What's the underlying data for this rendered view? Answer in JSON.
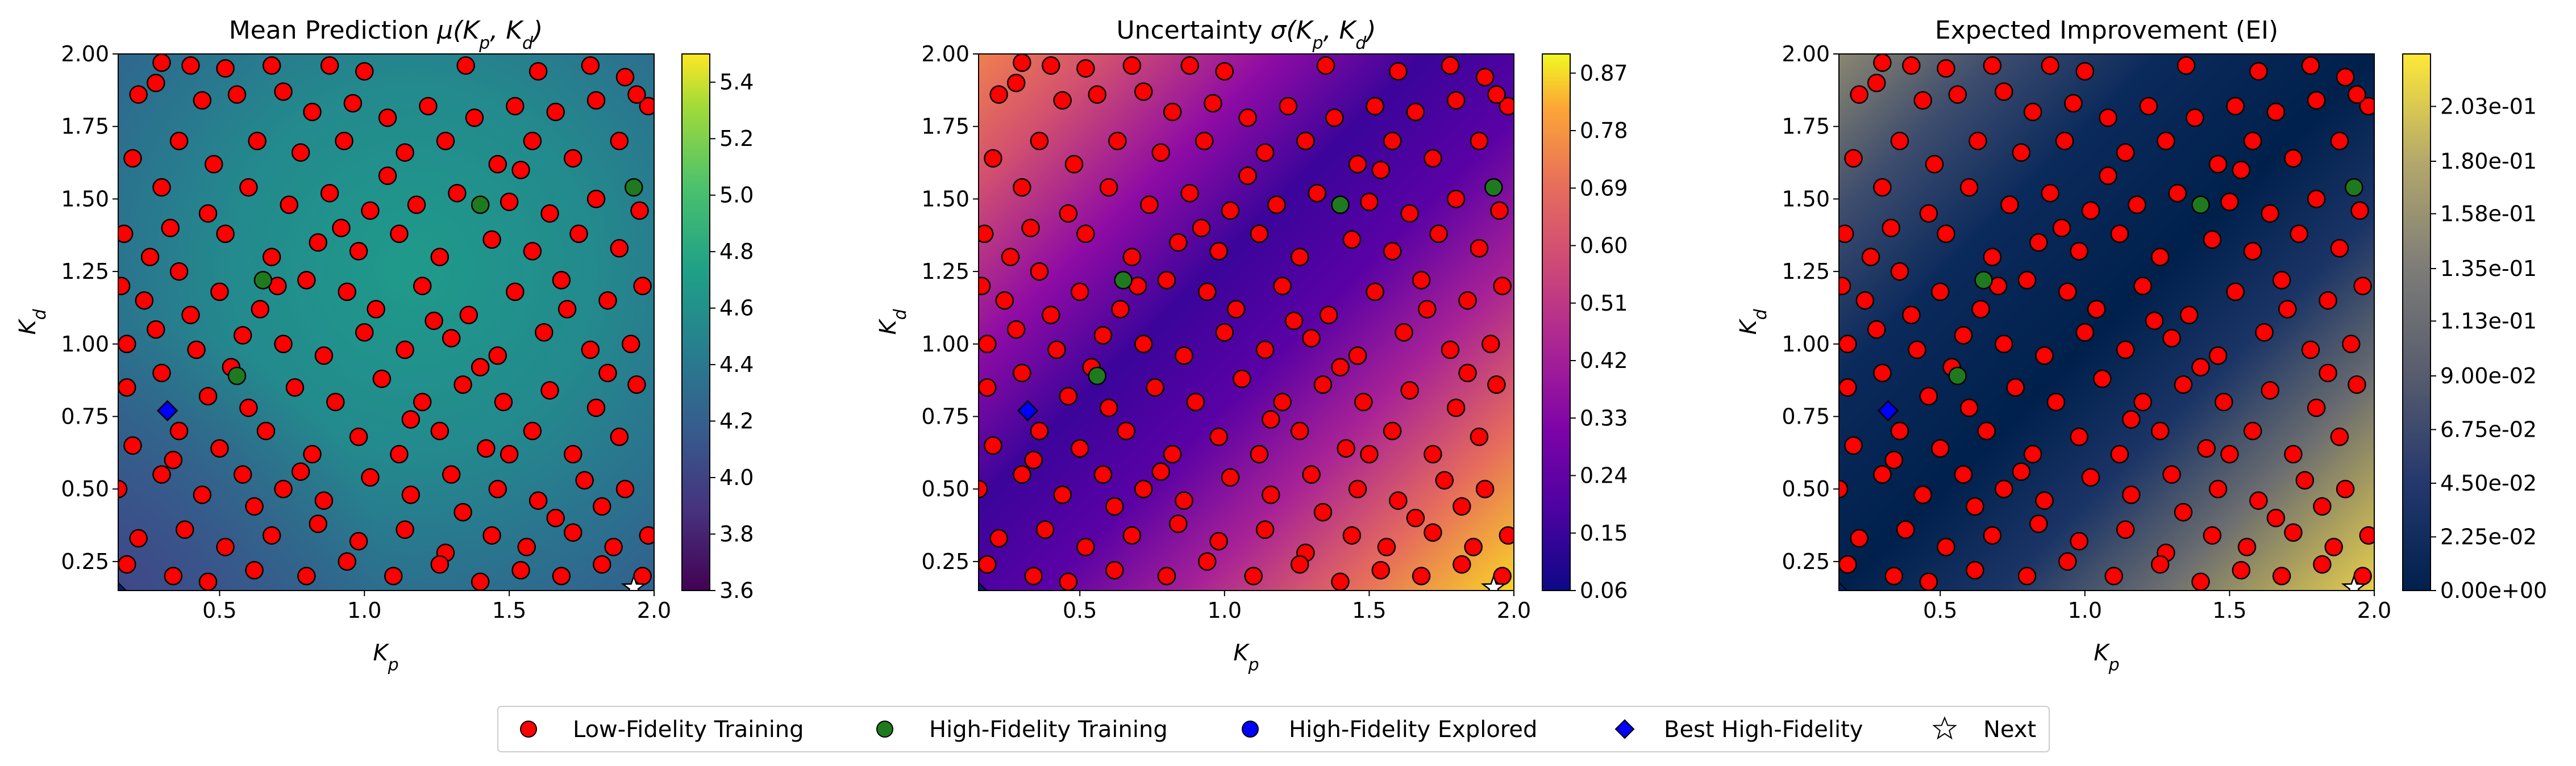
{
  "chart_data": [
    {
      "type": "heatmap",
      "title": "Mean Prediction μ(Kp, Kd)",
      "title_main": "Mean Prediction ",
      "title_math": "μ(K",
      "xlabel": "K",
      "xlabel_sub": "p",
      "ylabel": "K",
      "ylabel_sub": "d",
      "xlim": [
        0.15,
        2.0
      ],
      "ylim": [
        0.15,
        2.0
      ],
      "xticks": [
        "0.5",
        "1.0",
        "1.5",
        "2.0"
      ],
      "yticks": [
        "0.25",
        "0.50",
        "0.75",
        "1.00",
        "1.25",
        "1.50",
        "1.75",
        "2.00"
      ],
      "colormap": "viridis",
      "colorbar_range": [
        3.6,
        5.5
      ],
      "colorbar_ticks": [
        "3.6",
        "3.8",
        "4.0",
        "4.2",
        "4.4",
        "4.6",
        "4.8",
        "5.0",
        "5.2",
        "5.4"
      ]
    },
    {
      "type": "heatmap",
      "title": "Uncertainty σ(Kp, Kd)",
      "title_main": "Uncertainty ",
      "title_math": "σ(K",
      "xlabel": "K",
      "xlabel_sub": "p",
      "ylabel": "K",
      "ylabel_sub": "d",
      "xlim": [
        0.15,
        2.0
      ],
      "ylim": [
        0.15,
        2.0
      ],
      "xticks": [
        "0.5",
        "1.0",
        "1.5",
        "2.0"
      ],
      "yticks": [
        "0.25",
        "0.50",
        "0.75",
        "1.00",
        "1.25",
        "1.50",
        "1.75",
        "2.00"
      ],
      "colormap": "plasma",
      "colorbar_range": [
        0.06,
        0.9
      ],
      "colorbar_ticks": [
        "0.06",
        "0.15",
        "0.24",
        "0.33",
        "0.42",
        "0.51",
        "0.60",
        "0.69",
        "0.78",
        "0.87"
      ]
    },
    {
      "type": "heatmap",
      "title": "Expected Improvement (EI)",
      "xlabel": "K",
      "xlabel_sub": "p",
      "ylabel": "K",
      "ylabel_sub": "d",
      "xlim": [
        0.15,
        2.0
      ],
      "ylim": [
        0.15,
        2.0
      ],
      "xticks": [
        "0.5",
        "1.0",
        "1.5",
        "2.0"
      ],
      "yticks": [
        "0.25",
        "0.50",
        "0.75",
        "1.00",
        "1.25",
        "1.50",
        "1.75",
        "2.00"
      ],
      "colormap": "cividis",
      "colorbar_range": [
        0.0,
        0.225
      ],
      "colorbar_ticks": [
        "0.00e+00",
        "2.25e-02",
        "4.50e-02",
        "6.75e-02",
        "9.00e-02",
        "1.13e-01",
        "1.35e-01",
        "1.58e-01",
        "1.80e-01",
        "2.03e-01"
      ]
    }
  ],
  "points": {
    "low_fidelity": [
      [
        0.3,
        1.97
      ],
      [
        0.4,
        1.96
      ],
      [
        0.52,
        1.95
      ],
      [
        0.68,
        1.96
      ],
      [
        0.88,
        1.96
      ],
      [
        1.0,
        1.94
      ],
      [
        1.35,
        1.96
      ],
      [
        1.6,
        1.94
      ],
      [
        1.78,
        1.96
      ],
      [
        1.9,
        1.92
      ],
      [
        1.98,
        1.82
      ],
      [
        0.22,
        1.86
      ],
      [
        0.28,
        1.9
      ],
      [
        0.44,
        1.84
      ],
      [
        0.56,
        1.86
      ],
      [
        0.72,
        1.87
      ],
      [
        0.82,
        1.8
      ],
      [
        0.96,
        1.83
      ],
      [
        1.08,
        1.78
      ],
      [
        1.22,
        1.82
      ],
      [
        1.38,
        1.78
      ],
      [
        1.52,
        1.82
      ],
      [
        1.66,
        1.8
      ],
      [
        1.8,
        1.84
      ],
      [
        1.94,
        1.86
      ],
      [
        0.2,
        1.64
      ],
      [
        0.36,
        1.7
      ],
      [
        0.48,
        1.62
      ],
      [
        0.63,
        1.7
      ],
      [
        0.78,
        1.66
      ],
      [
        0.93,
        1.7
      ],
      [
        1.14,
        1.66
      ],
      [
        1.28,
        1.7
      ],
      [
        1.46,
        1.62
      ],
      [
        1.58,
        1.7
      ],
      [
        1.72,
        1.64
      ],
      [
        1.88,
        1.7
      ],
      [
        0.3,
        1.54
      ],
      [
        0.46,
        1.45
      ],
      [
        0.6,
        1.54
      ],
      [
        0.74,
        1.48
      ],
      [
        0.88,
        1.52
      ],
      [
        1.02,
        1.46
      ],
      [
        1.18,
        1.48
      ],
      [
        1.32,
        1.52
      ],
      [
        1.5,
        1.49
      ],
      [
        1.64,
        1.45
      ],
      [
        1.8,
        1.5
      ],
      [
        1.95,
        1.46
      ],
      [
        0.17,
        1.38
      ],
      [
        0.33,
        1.4
      ],
      [
        0.52,
        1.38
      ],
      [
        0.68,
        1.3
      ],
      [
        0.84,
        1.35
      ],
      [
        0.98,
        1.32
      ],
      [
        1.12,
        1.38
      ],
      [
        1.26,
        1.3
      ],
      [
        1.44,
        1.36
      ],
      [
        1.58,
        1.32
      ],
      [
        1.74,
        1.38
      ],
      [
        1.88,
        1.33
      ],
      [
        0.16,
        1.2
      ],
      [
        0.24,
        1.15
      ],
      [
        0.36,
        1.25
      ],
      [
        0.5,
        1.18
      ],
      [
        0.64,
        1.12
      ],
      [
        0.8,
        1.22
      ],
      [
        0.94,
        1.18
      ],
      [
        1.04,
        1.12
      ],
      [
        1.2,
        1.2
      ],
      [
        1.36,
        1.1
      ],
      [
        1.52,
        1.18
      ],
      [
        1.68,
        1.22
      ],
      [
        1.84,
        1.15
      ],
      [
        1.96,
        1.2
      ],
      [
        0.18,
        1.0
      ],
      [
        0.28,
        1.05
      ],
      [
        0.42,
        0.98
      ],
      [
        0.58,
        1.03
      ],
      [
        0.72,
        1.0
      ],
      [
        0.86,
        0.96
      ],
      [
        1.0,
        1.04
      ],
      [
        1.14,
        0.98
      ],
      [
        1.3,
        1.02
      ],
      [
        1.46,
        0.96
      ],
      [
        1.62,
        1.04
      ],
      [
        1.78,
        0.98
      ],
      [
        1.92,
        1.0
      ],
      [
        0.18,
        0.85
      ],
      [
        0.3,
        0.9
      ],
      [
        0.46,
        0.82
      ],
      [
        0.6,
        0.78
      ],
      [
        0.76,
        0.85
      ],
      [
        0.9,
        0.8
      ],
      [
        1.06,
        0.88
      ],
      [
        1.2,
        0.8
      ],
      [
        1.34,
        0.86
      ],
      [
        1.48,
        0.8
      ],
      [
        1.64,
        0.84
      ],
      [
        1.8,
        0.78
      ],
      [
        1.94,
        0.86
      ],
      [
        0.2,
        0.65
      ],
      [
        0.36,
        0.7
      ],
      [
        0.5,
        0.64
      ],
      [
        0.66,
        0.7
      ],
      [
        0.82,
        0.62
      ],
      [
        0.98,
        0.68
      ],
      [
        1.12,
        0.62
      ],
      [
        1.26,
        0.7
      ],
      [
        1.42,
        0.64
      ],
      [
        1.58,
        0.7
      ],
      [
        1.72,
        0.62
      ],
      [
        1.88,
        0.68
      ],
      [
        0.15,
        0.5
      ],
      [
        0.3,
        0.55
      ],
      [
        0.44,
        0.48
      ],
      [
        0.58,
        0.55
      ],
      [
        0.72,
        0.5
      ],
      [
        0.86,
        0.46
      ],
      [
        1.02,
        0.54
      ],
      [
        1.16,
        0.48
      ],
      [
        1.3,
        0.55
      ],
      [
        1.46,
        0.5
      ],
      [
        1.6,
        0.46
      ],
      [
        1.76,
        0.53
      ],
      [
        1.9,
        0.5
      ],
      [
        0.22,
        0.33
      ],
      [
        0.38,
        0.36
      ],
      [
        0.52,
        0.3
      ],
      [
        0.68,
        0.34
      ],
      [
        0.84,
        0.38
      ],
      [
        0.98,
        0.32
      ],
      [
        1.14,
        0.36
      ],
      [
        1.28,
        0.28
      ],
      [
        1.44,
        0.34
      ],
      [
        1.56,
        0.3
      ],
      [
        1.72,
        0.35
      ],
      [
        1.86,
        0.3
      ],
      [
        1.98,
        0.34
      ],
      [
        0.18,
        0.24
      ],
      [
        0.34,
        0.2
      ],
      [
        0.46,
        0.18
      ],
      [
        0.62,
        0.22
      ],
      [
        0.8,
        0.2
      ],
      [
        0.94,
        0.25
      ],
      [
        1.1,
        0.2
      ],
      [
        1.26,
        0.24
      ],
      [
        1.4,
        0.18
      ],
      [
        1.54,
        0.22
      ],
      [
        1.68,
        0.2
      ],
      [
        1.82,
        0.24
      ],
      [
        1.96,
        0.2
      ],
      [
        0.26,
        1.3
      ],
      [
        0.4,
        1.1
      ],
      [
        0.54,
        0.92
      ],
      [
        0.7,
        1.2
      ],
      [
        0.92,
        1.4
      ],
      [
        1.08,
        1.58
      ],
      [
        1.24,
        1.08
      ],
      [
        1.4,
        0.92
      ],
      [
        1.54,
        1.6
      ],
      [
        1.7,
        1.12
      ],
      [
        1.84,
        0.9
      ],
      [
        0.34,
        0.6
      ],
      [
        0.62,
        0.44
      ],
      [
        0.78,
        0.56
      ],
      [
        1.16,
        0.74
      ],
      [
        1.34,
        0.42
      ],
      [
        1.5,
        0.62
      ],
      [
        1.66,
        0.4
      ],
      [
        1.82,
        0.44
      ]
    ],
    "high_fidelity_training": [
      [
        0.65,
        1.22
      ],
      [
        0.56,
        0.89
      ],
      [
        1.4,
        1.48
      ],
      [
        1.93,
        1.54
      ]
    ],
    "best_high_fidelity": [
      0.32,
      0.77
    ],
    "next": [
      1.93,
      0.16
    ]
  },
  "legend": {
    "low_fidelity": "Low-Fidelity Training",
    "high_fidelity": "High-Fidelity Training",
    "explored": "High-Fidelity Explored",
    "best": "Best High-Fidelity",
    "next": "Next"
  },
  "colors": {
    "low_fidelity": "#ff0000",
    "high_fidelity": "#1f7a1f",
    "explored": "#0000ff",
    "best": "#0000ff",
    "next": "#ffffff"
  }
}
